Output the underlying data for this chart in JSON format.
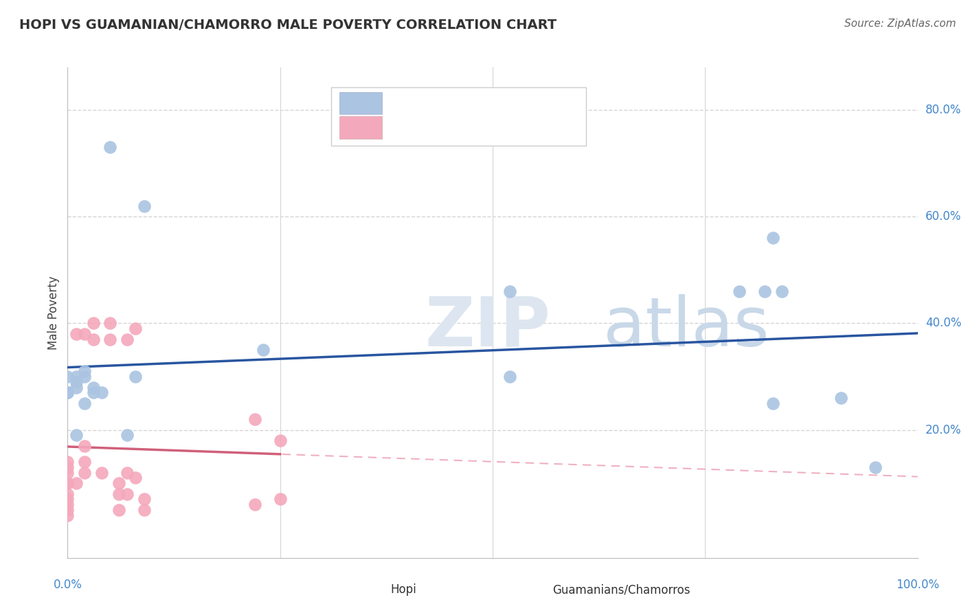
{
  "title": "HOPI VS GUAMANIAN/CHAMORRO MALE POVERTY CORRELATION CHART",
  "source": "Source: ZipAtlas.com",
  "ylabel": "Male Poverty",
  "xlim": [
    0.0,
    1.0
  ],
  "ylim": [
    -0.04,
    0.88
  ],
  "hopi_color": "#aac4e2",
  "guam_color": "#f4a8bc",
  "hopi_line_color": "#2955a0",
  "guam_line_color": "#d0607a",
  "guam_dash_color": "#f0b0c0",
  "hopi_x": [
    0.05,
    0.09,
    0.02,
    0.02,
    0.01,
    0.0,
    0.01,
    0.04,
    0.08,
    0.0,
    0.0,
    0.03,
    0.03,
    0.02,
    0.01,
    0.07,
    0.23,
    0.52,
    0.83,
    0.82,
    0.79,
    0.84,
    0.52,
    0.83,
    0.91,
    0.95,
    0.0,
    0.01
  ],
  "hopi_y": [
    0.73,
    0.62,
    0.31,
    0.3,
    0.29,
    0.3,
    0.28,
    0.27,
    0.3,
    0.27,
    0.27,
    0.28,
    0.27,
    0.25,
    0.19,
    0.19,
    0.35,
    0.3,
    0.56,
    0.46,
    0.46,
    0.46,
    0.46,
    0.25,
    0.26,
    0.13,
    0.27,
    0.3
  ],
  "guam_x": [
    0.0,
    0.0,
    0.0,
    0.0,
    0.0,
    0.0,
    0.0,
    0.0,
    0.0,
    0.0,
    0.01,
    0.01,
    0.02,
    0.02,
    0.02,
    0.02,
    0.03,
    0.03,
    0.04,
    0.05,
    0.05,
    0.06,
    0.06,
    0.06,
    0.07,
    0.07,
    0.07,
    0.08,
    0.08,
    0.09,
    0.22,
    0.22,
    0.25,
    0.25,
    0.09
  ],
  "guam_y": [
    0.12,
    0.1,
    0.1,
    0.08,
    0.07,
    0.06,
    0.05,
    0.04,
    0.14,
    0.13,
    0.1,
    0.38,
    0.38,
    0.17,
    0.14,
    0.12,
    0.4,
    0.37,
    0.12,
    0.4,
    0.37,
    0.1,
    0.08,
    0.05,
    0.37,
    0.12,
    0.08,
    0.39,
    0.11,
    0.07,
    0.06,
    0.22,
    0.18,
    0.07,
    0.05
  ],
  "background_color": "#ffffff",
  "grid_color": "#cccccc",
  "grid_dash_color": "#d5d5d5"
}
